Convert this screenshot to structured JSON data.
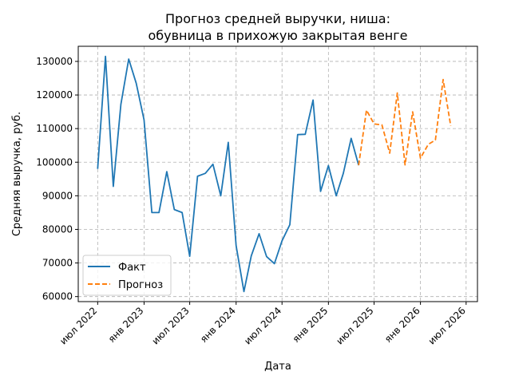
{
  "chart_data": {
    "type": "line",
    "title": "Прогноз средней выручки, ниша:\nобувница в прихожую закрытая венге",
    "xlabel": "Дата",
    "ylabel": "Средняя выручка, руб.",
    "ylim": [
      58500,
      134500
    ],
    "xlim": [
      "2022-04-15",
      "2026-08-15"
    ],
    "grid": true,
    "legend_position": "lower-left",
    "y_ticks": [
      60000,
      70000,
      80000,
      90000,
      100000,
      110000,
      120000,
      130000
    ],
    "x_ticks": [
      {
        "date": "2022-07-01",
        "label": "июл 2022"
      },
      {
        "date": "2023-01-01",
        "label": "янв 2023"
      },
      {
        "date": "2023-07-01",
        "label": "июл 2023"
      },
      {
        "date": "2024-01-01",
        "label": "янв 2024"
      },
      {
        "date": "2024-07-01",
        "label": "июл 2024"
      },
      {
        "date": "2025-01-01",
        "label": "янв 2025"
      },
      {
        "date": "2025-07-01",
        "label": "июл 2025"
      },
      {
        "date": "2026-01-01",
        "label": "янв 2026"
      },
      {
        "date": "2026-07-01",
        "label": "июл 2026"
      }
    ],
    "series": [
      {
        "name": "Факт",
        "color": "#1f77b4",
        "style": "solid",
        "x": [
          "2022-07-01",
          "2022-08-01",
          "2022-09-01",
          "2022-10-01",
          "2022-11-01",
          "2022-12-01",
          "2023-01-01",
          "2023-02-01",
          "2023-03-01",
          "2023-04-01",
          "2023-05-01",
          "2023-06-01",
          "2023-07-01",
          "2023-08-01",
          "2023-09-01",
          "2023-10-01",
          "2023-11-01",
          "2023-12-01",
          "2024-01-01",
          "2024-02-01",
          "2024-03-01",
          "2024-04-01",
          "2024-05-01",
          "2024-06-01",
          "2024-07-01",
          "2024-08-01",
          "2024-09-01",
          "2024-10-01",
          "2024-11-01",
          "2024-12-01",
          "2025-01-01",
          "2025-02-01",
          "2025-03-01",
          "2025-04-01",
          "2025-05-01"
        ],
        "values": [
          98000,
          131500,
          92800,
          117200,
          130700,
          123500,
          112600,
          85000,
          85000,
          97200,
          85900,
          85000,
          72000,
          95800,
          96700,
          99400,
          90000,
          105900,
          75200,
          61500,
          72100,
          78700,
          71900,
          69800,
          76600,
          81400,
          108200,
          108300,
          118500,
          91300,
          99000,
          90000,
          96700,
          107100,
          99100
        ]
      },
      {
        "name": "Прогноз",
        "color": "#ff7f0e",
        "style": "dashed",
        "x": [
          "2025-05-01",
          "2025-06-01",
          "2025-07-01",
          "2025-08-01",
          "2025-09-01",
          "2025-10-01",
          "2025-11-01",
          "2025-12-01",
          "2026-01-01",
          "2026-02-01",
          "2026-03-01",
          "2026-04-01",
          "2026-05-01"
        ],
        "values": [
          99100,
          115500,
          111400,
          111100,
          102700,
          120600,
          99200,
          115000,
          101200,
          105300,
          106600,
          124600,
          110800
        ]
      }
    ]
  }
}
